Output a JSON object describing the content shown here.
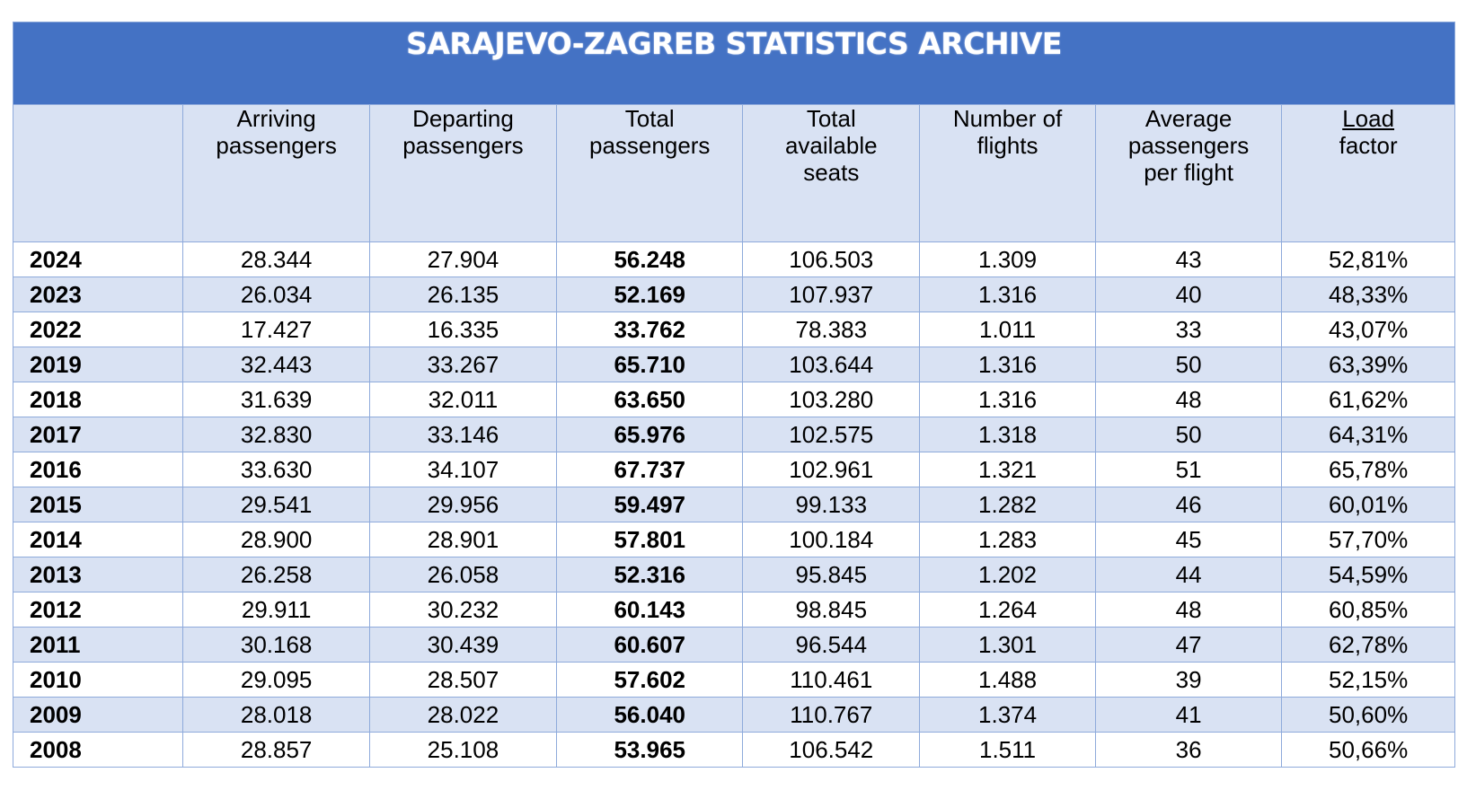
{
  "title": "SARAJEVO-ZAGREB STATISTICS ARCHIVE",
  "colors": {
    "title_bg": "#4472c4",
    "band": "#d9e2f3",
    "border": "#8eaadb",
    "title_text": "#ffffff"
  },
  "headers": [
    "",
    "Arriving\npassengers",
    "Departing\npassengers",
    "Total\npassengers",
    "Total\navailable\nseats",
    "Number of\nflights",
    "Average\npassengers\nper flight",
    "Load\nfactor"
  ],
  "rows": [
    [
      "2024",
      "28.344",
      "27.904",
      "56.248",
      "106.503",
      "1.309",
      "43",
      "52,81%"
    ],
    [
      "2023",
      "26.034",
      "26.135",
      "52.169",
      "107.937",
      "1.316",
      "40",
      "48,33%"
    ],
    [
      "2022",
      "17.427",
      "16.335",
      "33.762",
      "78.383",
      "1.011",
      "33",
      "43,07%"
    ],
    [
      "2019",
      "32.443",
      "33.267",
      "65.710",
      "103.644",
      "1.316",
      "50",
      "63,39%"
    ],
    [
      "2018",
      "31.639",
      "32.011",
      "63.650",
      "103.280",
      "1.316",
      "48",
      "61,62%"
    ],
    [
      "2017",
      "32.830",
      "33.146",
      "65.976",
      "102.575",
      "1.318",
      "50",
      "64,31%"
    ],
    [
      "2016",
      "33.630",
      "34.107",
      "67.737",
      "102.961",
      "1.321",
      "51",
      "65,78%"
    ],
    [
      "2015",
      "29.541",
      "29.956",
      "59.497",
      "99.133",
      "1.282",
      "46",
      "60,01%"
    ],
    [
      "2014",
      "28.900",
      "28.901",
      "57.801",
      "100.184",
      "1.283",
      "45",
      "57,70%"
    ],
    [
      "2013",
      "26.258",
      "26.058",
      "52.316",
      "95.845",
      "1.202",
      "44",
      "54,59%"
    ],
    [
      "2012",
      "29.911",
      "30.232",
      "60.143",
      "98.845",
      "1.264",
      "48",
      "60,85%"
    ],
    [
      "2011",
      "30.168",
      "30.439",
      "60.607",
      "96.544",
      "1.301",
      "47",
      "62,78%"
    ],
    [
      "2010",
      "29.095",
      "28.507",
      "57.602",
      "110.461",
      "1.488",
      "39",
      "52,15%"
    ],
    [
      "2009",
      "28.018",
      "28.022",
      "56.040",
      "110.767",
      "1.374",
      "41",
      "50,60%"
    ],
    [
      "2008",
      "28.857",
      "25.108",
      "53.965",
      "106.542",
      "1.511",
      "36",
      "50,66%"
    ]
  ]
}
